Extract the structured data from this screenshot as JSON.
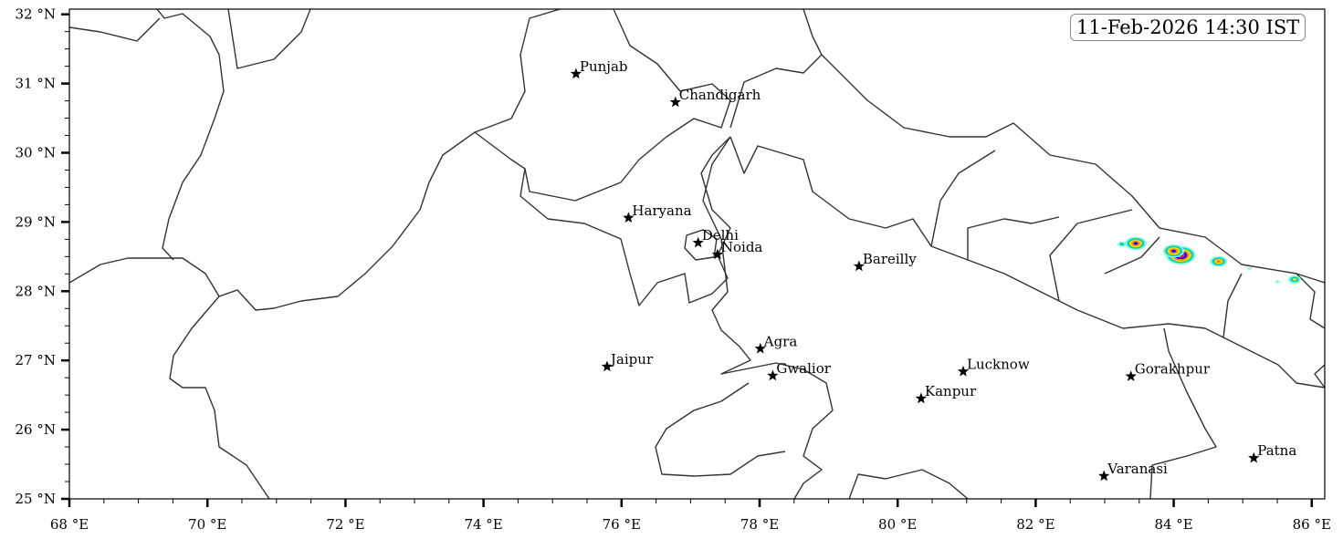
{
  "map": {
    "timestamp": "11-Feb-2026 14:30 IST",
    "lon_range": [
      68,
      86.2
    ],
    "lat_range": [
      25,
      32.1
    ],
    "x_ticks": [
      {
        "value": 68,
        "label": "68 °E"
      },
      {
        "value": 70,
        "label": "70 °E"
      },
      {
        "value": 72,
        "label": "72 °E"
      },
      {
        "value": 74,
        "label": "74 °E"
      },
      {
        "value": 76,
        "label": "76 °E"
      },
      {
        "value": 78,
        "label": "78 °E"
      },
      {
        "value": 80,
        "label": "80 °E"
      },
      {
        "value": 82,
        "label": "82 °E"
      },
      {
        "value": 84,
        "label": "84 °E"
      },
      {
        "value": 86,
        "label": "86 °E"
      }
    ],
    "y_ticks": [
      {
        "value": 25,
        "label": "25 °N"
      },
      {
        "value": 26,
        "label": "26 °N"
      },
      {
        "value": 27,
        "label": "27 °N"
      },
      {
        "value": 28,
        "label": "28 °N"
      },
      {
        "value": 29,
        "label": "29 °N"
      },
      {
        "value": 30,
        "label": "30 °N"
      },
      {
        "value": 31,
        "label": "31 °N"
      },
      {
        "value": 32,
        "label": "32 °N"
      }
    ],
    "minor_tick_step": 0.5,
    "marker": "star-icon",
    "cities": [
      {
        "name": "Punjab",
        "lon": 75.34,
        "lat": 31.14
      },
      {
        "name": "Chandigarh",
        "lon": 76.78,
        "lat": 30.73
      },
      {
        "name": "Haryana",
        "lon": 76.1,
        "lat": 29.06
      },
      {
        "name": "Delhi",
        "lon": 77.11,
        "lat": 28.7
      },
      {
        "name": "Noida",
        "lon": 77.39,
        "lat": 28.53
      },
      {
        "name": "Bareilly",
        "lon": 79.44,
        "lat": 28.36
      },
      {
        "name": "Agra",
        "lon": 78.01,
        "lat": 27.17
      },
      {
        "name": "Jaipur",
        "lon": 75.79,
        "lat": 26.91
      },
      {
        "name": "Gwalior",
        "lon": 78.19,
        "lat": 26.78
      },
      {
        "name": "Lucknow",
        "lon": 80.95,
        "lat": 26.84
      },
      {
        "name": "Kanpur",
        "lon": 80.34,
        "lat": 26.45
      },
      {
        "name": "Gorakhpur",
        "lon": 83.38,
        "lat": 26.77
      },
      {
        "name": "Patna",
        "lon": 85.16,
        "lat": 25.59
      },
      {
        "name": "Varanasi",
        "lon": 82.99,
        "lat": 25.33
      }
    ],
    "precip_colors": [
      "#7fffd4",
      "#00c8c8",
      "#ffd700",
      "#ff8c00",
      "#0000ff",
      "#ff00ff",
      "#8b0000"
    ],
    "precip_cells": [
      {
        "lon": 84.1,
        "lat": 28.52,
        "intensity": 6
      },
      {
        "lon": 84.0,
        "lat": 28.58,
        "intensity": 4
      },
      {
        "lon": 84.65,
        "lat": 28.43,
        "intensity": 3
      },
      {
        "lon": 83.45,
        "lat": 28.69,
        "intensity": 4
      },
      {
        "lon": 83.25,
        "lat": 28.68,
        "intensity": 1
      },
      {
        "lon": 85.1,
        "lat": 28.33,
        "intensity": 0
      },
      {
        "lon": 85.5,
        "lat": 28.14,
        "intensity": 0
      },
      {
        "lon": 85.75,
        "lat": 28.17,
        "intensity": 2
      }
    ]
  }
}
